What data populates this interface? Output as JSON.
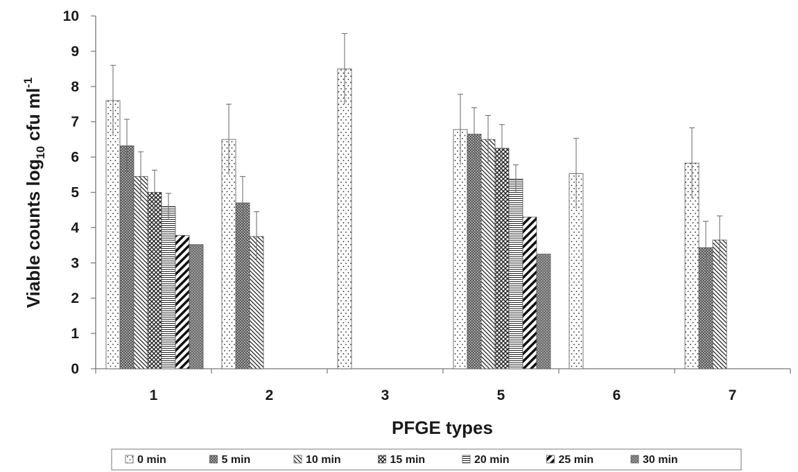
{
  "chart_data": {
    "type": "bar",
    "categories": [
      "1",
      "2",
      "3",
      "5",
      "6",
      "7"
    ],
    "xlabel": "PFGE types",
    "ylabel": {
      "main": "Viable counts log",
      "sub": "10",
      "unit": " cfu ml",
      "sup": "-1"
    },
    "ylim": [
      0,
      10
    ],
    "yticks": [
      0,
      1,
      2,
      3,
      4,
      5,
      6,
      7,
      8,
      9,
      10
    ],
    "grid": false,
    "legend_position": "bottom",
    "error_bars": true,
    "series": [
      {
        "name": "0 min",
        "pattern": "dots",
        "values": [
          7.6,
          6.5,
          8.5,
          6.78,
          5.53,
          5.83
        ],
        "errors": [
          1.0,
          1.0,
          1.0,
          1.0,
          1.0,
          1.0
        ]
      },
      {
        "name": "5 min",
        "pattern": "darkgrain",
        "values": [
          6.32,
          4.7,
          0,
          6.65,
          0,
          3.43
        ],
        "errors": [
          0.75,
          0.75,
          0,
          0.75,
          0,
          0.75
        ]
      },
      {
        "name": "10 min",
        "pattern": "diagonal",
        "values": [
          5.45,
          3.75,
          0,
          6.5,
          0,
          3.65
        ],
        "errors": [
          0.7,
          0.7,
          0,
          0.68,
          0,
          0.68
        ]
      },
      {
        "name": "15 min",
        "pattern": "crosshatch",
        "values": [
          5.0,
          0,
          0,
          6.25,
          0,
          0
        ],
        "errors": [
          0.63,
          0,
          0,
          0.67,
          0,
          0
        ]
      },
      {
        "name": "20 min",
        "pattern": "horizontal",
        "values": [
          4.6,
          0,
          0,
          5.38,
          0,
          0
        ],
        "errors": [
          0.37,
          0,
          0,
          0.4,
          0,
          0
        ]
      },
      {
        "name": "25 min",
        "pattern": "thickdiag",
        "values": [
          3.78,
          0,
          0,
          4.3,
          0,
          0
        ],
        "errors": [
          0,
          0,
          0,
          0,
          0,
          0
        ]
      },
      {
        "name": "30 min",
        "pattern": "darkdot",
        "values": [
          3.52,
          0,
          0,
          3.25,
          0,
          0
        ],
        "errors": [
          0,
          0,
          0,
          0,
          0,
          0
        ]
      }
    ]
  }
}
